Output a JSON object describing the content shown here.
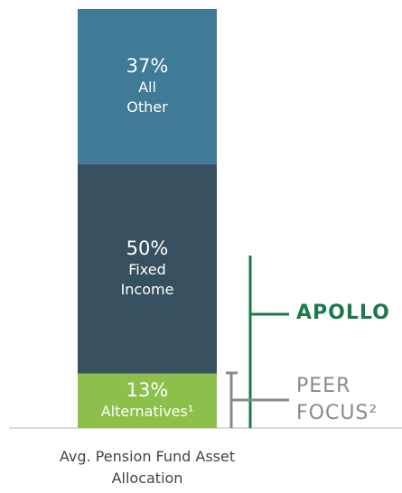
{
  "chart_data": {
    "type": "stacked_bar",
    "categories": [
      "Avg. Pension Fund Asset Allocation"
    ],
    "ylim": [
      0,
      100
    ],
    "series": [
      {
        "name": "Alternatives¹",
        "color": "#8cc04a",
        "values": [
          13
        ],
        "value_labels": [
          "13%"
        ]
      },
      {
        "name": "Fixed Income",
        "color": "#36505f",
        "values": [
          50
        ],
        "value_labels": [
          "50%"
        ]
      },
      {
        "name": "All Other",
        "color": "#3f7a96",
        "values": [
          37
        ],
        "value_labels": [
          "37%"
        ]
      }
    ],
    "annotations": [
      {
        "text": "APOLLO",
        "color": "#1a7a4a"
      },
      {
        "text": "PEER FOCUS²",
        "color": "#8a8a8a"
      }
    ]
  }
}
